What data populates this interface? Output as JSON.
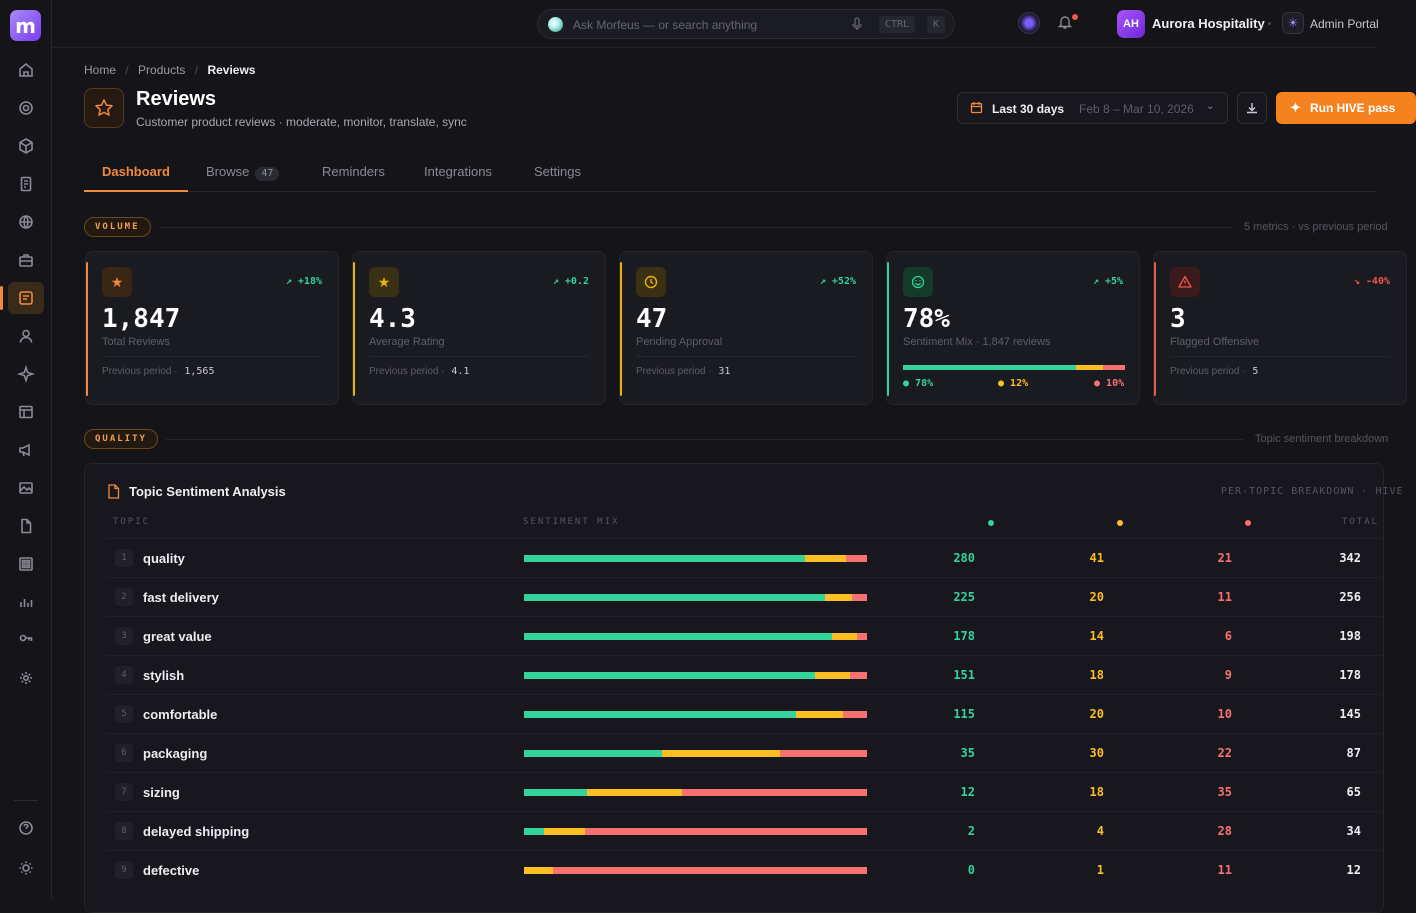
{
  "topbar": {
    "search_placeholder": "Ask Morfeus — or search anything",
    "kbd_ctrl": "CTRL",
    "kbd_k": "K",
    "org_initials": "AH",
    "org_name": "Aurora Hospitality",
    "portal_label": "Admin Portal"
  },
  "breadcrumb": {
    "home": "Home",
    "products": "Products",
    "current": "Reviews"
  },
  "header": {
    "title": "Reviews",
    "subtitle": "Customer product reviews · moderate, monitor, translate, sync",
    "date_label": "Last 30 days",
    "date_range": "Feb 8 – Mar 10, 2026",
    "run_label": "Run HIVE pass"
  },
  "tabs": [
    {
      "label": "Dashboard"
    },
    {
      "label": "Browse",
      "badge": "47"
    },
    {
      "label": "Reminders"
    },
    {
      "label": "Integrations"
    },
    {
      "label": "Settings"
    }
  ],
  "volume": {
    "pill": "VOLUME",
    "right": "5 metrics · vs previous period"
  },
  "quality": {
    "pill": "QUALITY",
    "right": "Topic sentiment breakdown"
  },
  "cards": [
    {
      "value": "1,847",
      "label": "Total Reviews",
      "trend": "+18%",
      "prev_label": "Previous period",
      "prev_value": "1,565",
      "accent": "#f08a3a",
      "trend_color": "#34d399"
    },
    {
      "value": "4.3",
      "label": "Average Rating",
      "trend": "+0.2",
      "prev_label": "Previous period",
      "prev_value": "4.1",
      "accent": "#eab308",
      "trend_color": "#34d399"
    },
    {
      "value": "47",
      "label": "Pending Approval",
      "trend": "+52%",
      "prev_label": "Previous period",
      "prev_value": "31",
      "accent": "#eab308",
      "trend_color": "#34d399"
    },
    {
      "value": "78%",
      "label": "Sentiment Mix · 1,847 reviews",
      "trend": "+5%",
      "accent": "#34d399",
      "trend_color": "#34d399",
      "mix": {
        "positive": 78,
        "neutral": 12,
        "negative": 10,
        "positive_label": "78%",
        "neutral_label": "12%",
        "negative_label": "10%"
      }
    },
    {
      "value": "3",
      "label": "Flagged Offensive",
      "trend": "-40%",
      "prev_label": "Previous period",
      "prev_value": "5",
      "accent": "#f0564a",
      "trend_color": "#f0564a"
    }
  ],
  "tsa": {
    "title": "Topic Sentiment Analysis",
    "right": "PER-TOPIC BREAKDOWN · HIVE",
    "col_topic": "TOPIC",
    "col_mix": "SENTIMENT MIX",
    "col_total": "TOTAL",
    "colors": {
      "positive": "#34d399",
      "neutral": "#fbbf24",
      "negative": "#f87171"
    },
    "rows": [
      {
        "idx": "1",
        "topic": "quality",
        "pos": "280",
        "neu": "41",
        "neg": "21",
        "total": "342"
      },
      {
        "idx": "2",
        "topic": "fast delivery",
        "pos": "225",
        "neu": "20",
        "neg": "11",
        "total": "256"
      },
      {
        "idx": "3",
        "topic": "great value",
        "pos": "178",
        "neu": "14",
        "neg": "6",
        "total": "198"
      },
      {
        "idx": "4",
        "topic": "stylish",
        "pos": "151",
        "neu": "18",
        "neg": "9",
        "total": "178"
      },
      {
        "idx": "5",
        "topic": "comfortable",
        "pos": "115",
        "neu": "20",
        "neg": "10",
        "total": "145"
      },
      {
        "idx": "6",
        "topic": "packaging",
        "pos": "35",
        "neu": "30",
        "neg": "22",
        "total": "87"
      },
      {
        "idx": "7",
        "topic": "sizing",
        "pos": "12",
        "neu": "18",
        "neg": "35",
        "total": "65"
      },
      {
        "idx": "8",
        "topic": "delayed shipping",
        "pos": "2",
        "neu": "4",
        "neg": "28",
        "total": "34"
      },
      {
        "idx": "9",
        "topic": "defective",
        "pos": "0",
        "neu": "1",
        "neg": "11",
        "total": "12"
      }
    ]
  }
}
